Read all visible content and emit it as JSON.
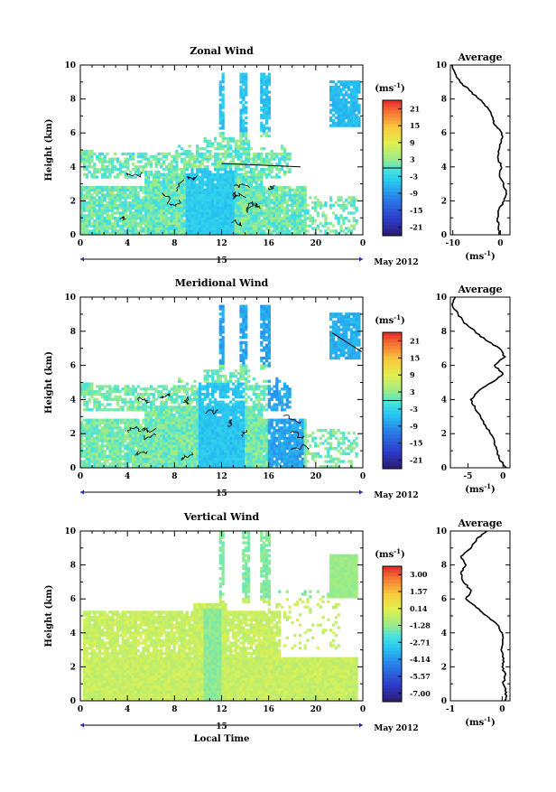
{
  "chart_data": [
    {
      "type": "heatmap",
      "title": "Zonal Wind",
      "ylabel": "Height (km)",
      "xlim": [
        0,
        24
      ],
      "ylim": [
        0,
        10
      ],
      "x_ticks": [
        "0",
        "4",
        "8",
        "12",
        "16",
        "20",
        "0"
      ],
      "y_ticks": [
        "0",
        "2",
        "4",
        "6",
        "8",
        "10"
      ],
      "day_label": "15",
      "date_label": "May 2012",
      "colorbar": {
        "unit": "(ms",
        "unit_exp": "-1",
        "unit_close": ")",
        "ticks": [
          "21",
          "15",
          "9",
          "3",
          "-3",
          "-9",
          "-15",
          "-21"
        ],
        "range": [
          -24,
          24
        ]
      },
      "average": {
        "title": "Average",
        "xlabel": "(ms",
        "xlabel_exp": "-1",
        "xlabel_close": ")",
        "x_ticks": [
          "-10",
          "0"
        ],
        "xlim": [
          -10.5,
          2
        ],
        "profile": [
          [
            0.0,
            -0.2
          ],
          [
            0.5,
            -0.4
          ],
          [
            1.0,
            -0.6
          ],
          [
            1.5,
            -0.3
          ],
          [
            2.0,
            0.8
          ],
          [
            2.5,
            1.2
          ],
          [
            3.0,
            0.7
          ],
          [
            3.5,
            -0.2
          ],
          [
            4.0,
            0.2
          ],
          [
            4.5,
            -0.5
          ],
          [
            5.0,
            -0.3
          ],
          [
            5.5,
            0.2
          ],
          [
            6.0,
            0.3
          ],
          [
            6.5,
            -1.3
          ],
          [
            7.0,
            -1.8
          ],
          [
            7.5,
            -2.7
          ],
          [
            8.0,
            -4.5
          ],
          [
            8.5,
            -6.5
          ],
          [
            9.0,
            -8.5
          ],
          [
            9.5,
            -9.5
          ],
          [
            10.0,
            -10.2
          ]
        ]
      }
    },
    {
      "type": "heatmap",
      "title": "Meridional Wind",
      "ylabel": "Height (km)",
      "xlim": [
        0,
        24
      ],
      "ylim": [
        0,
        10
      ],
      "x_ticks": [
        "0",
        "4",
        "8",
        "12",
        "16",
        "20",
        "0"
      ],
      "y_ticks": [
        "0",
        "2",
        "4",
        "6",
        "8",
        "10"
      ],
      "day_label": "15",
      "date_label": "May 2012",
      "colorbar": {
        "unit": "(ms",
        "unit_exp": "-1",
        "unit_close": ")",
        "ticks": [
          "21",
          "15",
          "9",
          "3",
          "-3",
          "-9",
          "-15",
          "-21"
        ],
        "range": [
          -24,
          24
        ]
      },
      "average": {
        "title": "Average",
        "xlabel": "(ms",
        "xlabel_exp": "-1",
        "xlabel_close": ")",
        "x_ticks": [
          "-5",
          "0"
        ],
        "xlim": [
          -7.5,
          1
        ],
        "profile": [
          [
            0.0,
            0.5
          ],
          [
            0.5,
            -0.5
          ],
          [
            1.0,
            -0.8
          ],
          [
            1.5,
            -1.2
          ],
          [
            2.0,
            -1.8
          ],
          [
            2.5,
            -2.5
          ],
          [
            3.0,
            -3.2
          ],
          [
            3.5,
            -4.0
          ],
          [
            4.0,
            -4.6
          ],
          [
            4.5,
            -3.5
          ],
          [
            5.0,
            -1.6
          ],
          [
            5.5,
            0.0
          ],
          [
            6.0,
            -1.2
          ],
          [
            6.5,
            0.3
          ],
          [
            7.0,
            -0.5
          ],
          [
            7.5,
            -2.5
          ],
          [
            8.0,
            -4.0
          ],
          [
            8.5,
            -5.6
          ],
          [
            9.0,
            -6.4
          ],
          [
            9.5,
            -7.2
          ],
          [
            10.0,
            -6.8
          ]
        ]
      }
    },
    {
      "type": "heatmap",
      "title": "Vertical Wind",
      "ylabel": "Height (km)",
      "xlabel": "Local Time",
      "xlim": [
        0,
        24
      ],
      "ylim": [
        0,
        10
      ],
      "x_ticks": [
        "0",
        "4",
        "8",
        "12",
        "16",
        "20",
        "0"
      ],
      "y_ticks": [
        "0",
        "2",
        "4",
        "6",
        "8",
        "10"
      ],
      "day_label": "15",
      "date_label": "May 2012",
      "colorbar": {
        "unit": "(ms",
        "unit_exp": "-1",
        "unit_close": ")",
        "ticks": [
          "3.00",
          "1.57",
          "0.14",
          "-1.28",
          "-2.71",
          "-4.14",
          "-5.57",
          "-7.00"
        ],
        "range": [
          -7.7,
          3.7
        ]
      },
      "average": {
        "title": "Average",
        "xlabel": "(ms",
        "xlabel_exp": "-1",
        "xlabel_close": ")",
        "x_ticks": [
          "-1",
          "0"
        ],
        "xlim": [
          -1,
          0.15
        ],
        "profile": [
          [
            0.0,
            0.05
          ],
          [
            0.5,
            0.08
          ],
          [
            1.0,
            0.02
          ],
          [
            1.5,
            0.06
          ],
          [
            2.0,
            0.0
          ],
          [
            2.5,
            0.03
          ],
          [
            3.0,
            -0.02
          ],
          [
            3.5,
            0.01
          ],
          [
            4.0,
            0.0
          ],
          [
            4.5,
            -0.1
          ],
          [
            5.0,
            -0.3
          ],
          [
            5.5,
            -0.5
          ],
          [
            6.0,
            -0.7
          ],
          [
            6.5,
            -0.6
          ],
          [
            7.0,
            -0.75
          ],
          [
            7.5,
            -0.8
          ],
          [
            8.0,
            -0.7
          ],
          [
            8.5,
            -0.8
          ],
          [
            9.0,
            -0.6
          ],
          [
            9.5,
            -0.5
          ],
          [
            10.0,
            -0.3
          ]
        ]
      }
    }
  ]
}
